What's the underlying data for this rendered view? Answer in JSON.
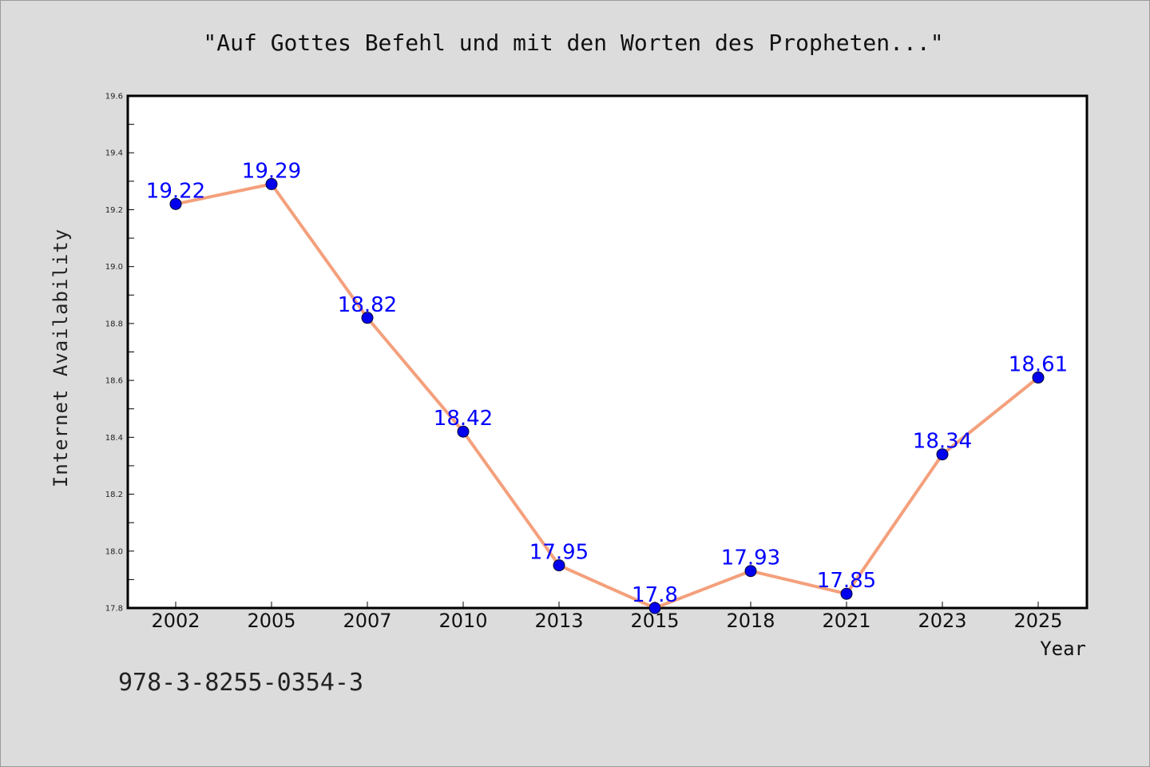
{
  "chart_data": {
    "type": "line",
    "title": "\"Auf Gottes Befehl und mit den Worten des Propheten...\"",
    "xlabel": "Year",
    "ylabel": "Internet Availability",
    "categories": [
      "2002",
      "2005",
      "2007",
      "2010",
      "2013",
      "2015",
      "2018",
      "2021",
      "2023",
      "2025"
    ],
    "values": [
      19.22,
      19.29,
      18.82,
      18.42,
      17.95,
      17.8,
      17.93,
      17.85,
      18.34,
      18.61
    ],
    "data_labels": [
      "19.22",
      "19.29",
      "18.82",
      "18.42",
      "17.95",
      "17.8",
      "17.93",
      "17.85",
      "18.34",
      "18.61"
    ],
    "ylim": [
      17.8,
      19.6
    ],
    "yticks": [
      "17.8",
      "18.0",
      "18.2",
      "18.4",
      "18.6",
      "18.8",
      "19.0",
      "19.2",
      "19.4",
      "19.6"
    ],
    "grid": false,
    "line_color": "#f4a07c",
    "marker_color": "#0000ee",
    "label_color": "#0000ff"
  },
  "footer": {
    "isbn": "978-3-8255-0354-3"
  }
}
